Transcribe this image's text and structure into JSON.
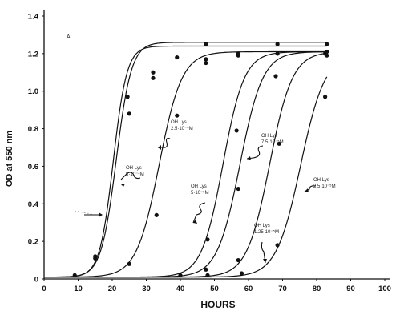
{
  "chart_data": {
    "type": "scatter",
    "panel_label": "A",
    "xlabel": "HOURS",
    "ylabel": "OD at 550 nm",
    "xlim": [
      0,
      100
    ],
    "ylim": [
      0,
      1.4
    ],
    "x_ticks": [
      "0",
      "10",
      "20",
      "30",
      "40",
      "50",
      "60",
      "70",
      "80",
      "90",
      "100"
    ],
    "y_ticks": [
      "0",
      "0.2",
      "0.4",
      "0.6",
      "0.8",
      "1.0",
      "1.2",
      "1.4"
    ],
    "series": [
      {
        "curve": {
          "x0": 20.3,
          "k": 0.5,
          "top": 1.24
        },
        "points": [
          [
            9,
            0.02
          ],
          [
            15,
            0.11
          ],
          [
            24.5,
            0.97
          ],
          [
            32,
            1.1
          ],
          [
            47.5,
            1.17
          ]
        ]
      },
      {
        "curve": {
          "x0": 21.2,
          "k": 0.45,
          "top": 1.26
        },
        "points": [
          [
            15,
            0.12
          ],
          [
            25,
            0.88
          ],
          [
            32,
            1.07
          ],
          [
            39,
            1.18
          ],
          [
            47.5,
            1.25
          ],
          [
            57,
            1.2
          ],
          [
            68.5,
            1.25
          ],
          [
            83,
            1.25
          ]
        ]
      },
      {
        "curve": {
          "x0": 33.8,
          "k": 0.3,
          "top": 1.21
        },
        "points": [
          [
            25,
            0.08
          ],
          [
            33,
            0.34
          ],
          [
            39,
            0.87
          ],
          [
            47.5,
            1.15
          ],
          [
            57,
            1.19
          ]
        ]
      },
      {
        "curve": {
          "x0": 52.5,
          "k": 0.32,
          "top": 1.21
        },
        "points": [
          [
            40,
            0.02
          ],
          [
            48,
            0.21
          ],
          [
            56.5,
            0.79
          ],
          [
            68,
            1.08
          ],
          [
            82.5,
            1.2
          ]
        ]
      },
      {
        "curve": {
          "x0": 57.5,
          "k": 0.3,
          "top": 1.21
        },
        "points": [
          [
            47.5,
            0.05
          ],
          [
            57,
            0.48
          ],
          [
            68.5,
            1.2
          ],
          [
            83,
            1.21
          ]
        ]
      },
      {
        "curve": {
          "x0": 66.2,
          "k": 0.3,
          "top": 1.21
        },
        "points": [
          [
            57,
            0.1
          ],
          [
            69,
            0.72
          ],
          [
            83,
            1.19
          ]
        ]
      },
      {
        "curve": {
          "x0": 75.3,
          "k": 0.28,
          "top": 1.2
        },
        "points": [
          [
            48,
            0.02
          ],
          [
            58,
            0.03
          ],
          [
            68.5,
            0.18
          ],
          [
            82.5,
            0.97
          ]
        ]
      }
    ],
    "annotations": [
      {
        "lines": [
          "OH Lys",
          "2.5·10⁻⁴M"
        ]
      },
      {
        "lines": [
          "OH Lys",
          "5·10⁻⁴M"
        ]
      },
      {
        "lines": [
          "OH Lys",
          "5·10⁻⁵M"
        ]
      },
      {
        "lines": [
          "OH Lys",
          "7.5·10⁻⁵M"
        ]
      },
      {
        "lines": [
          "OH Lys",
          "1.25·10⁻⁵M"
        ]
      },
      {
        "lines": [
          "OH Lys",
          "2.5·10⁻⁵M"
        ]
      }
    ]
  }
}
